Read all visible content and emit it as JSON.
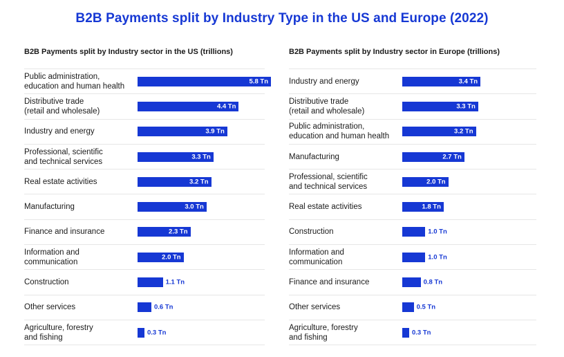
{
  "title": "B2B Payments split by Industry Type in the US and Europe (2022)",
  "colors": {
    "bar": "#1638d4",
    "title": "#1638d4",
    "outside_label": "#1638d4",
    "inside_label": "#ffffff"
  },
  "chart_data": [
    {
      "type": "bar",
      "orientation": "horizontal",
      "title": "B2B Payments split by Industry sector in the US (trillions)",
      "unit": "Tn",
      "xlim": [
        0,
        5.8
      ],
      "categories": [
        "Public administration,\neducation and human health",
        "Distributive trade\n(retail and wholesale)",
        "Industry and energy",
        "Professional, scientific\nand technical services",
        "Real estate activities",
        "Manufacturing",
        "Finance and insurance",
        "Information and\ncommunication",
        "Construction",
        "Other services",
        "Agriculture, forestry\nand fishing"
      ],
      "values": [
        5.8,
        4.4,
        3.9,
        3.3,
        3.2,
        3.0,
        2.3,
        2.0,
        1.1,
        0.6,
        0.3
      ],
      "data_labels": [
        "5.8 Tn",
        "4.4 Tn",
        "3.9 Tn",
        "3.3 Tn",
        "3.2 Tn",
        "3.0 Tn",
        "2.3 Tn",
        "2.0 Tn",
        "1.1 Tn",
        "0.6 Tn",
        "0.3 Tn"
      ]
    },
    {
      "type": "bar",
      "orientation": "horizontal",
      "title": "B2B Payments split by Industry sector in Europe (trillions)",
      "unit": "Tn",
      "xlim": [
        0,
        5.8
      ],
      "categories": [
        "Industry and energy",
        "Distributive trade\n(retail and wholesale)",
        "Public administration,\neducation and human health",
        "Manufacturing",
        "Professional, scientific\nand technical services",
        "Real estate activities",
        "Construction",
        "Information and\ncommunication",
        "Finance and insurance",
        "Other services",
        "Agriculture, forestry\nand fishing"
      ],
      "values": [
        3.4,
        3.3,
        3.2,
        2.7,
        2.0,
        1.8,
        1.0,
        1.0,
        0.8,
        0.5,
        0.3
      ],
      "data_labels": [
        "3.4 Tn",
        "3.3 Tn",
        "3.2 Tn",
        "2.7 Tn",
        "2.0 Tn",
        "1.8 Tn",
        "1.0 Tn",
        "1.0 Tn",
        "0.8 Tn",
        "0.5 Tn",
        "0.3 Tn"
      ]
    }
  ]
}
